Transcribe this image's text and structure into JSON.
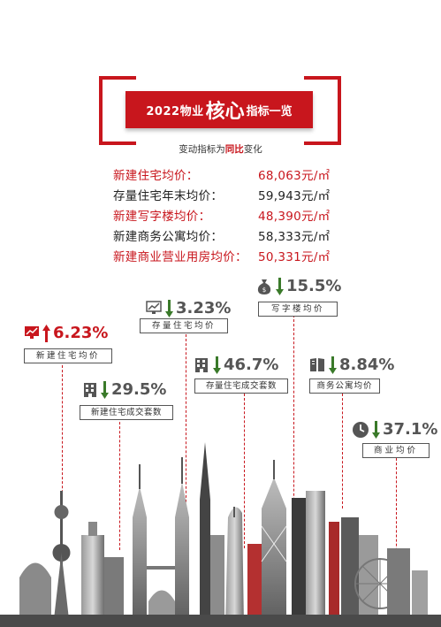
{
  "title": {
    "part1": "2022物业",
    "part2": "核心",
    "part3": "指标一览"
  },
  "subtitle": {
    "prefix": "变动指标为",
    "highlight": "同比",
    "suffix": "变化"
  },
  "prices": [
    {
      "label": "新建住宅均价：",
      "value": "68,063元/㎡",
      "color": "#c8161d"
    },
    {
      "label": "存量住宅年末均价：",
      "value": "59,943元/㎡",
      "color": "#222222"
    },
    {
      "label": "新建写字楼均价：",
      "value": "48,390元/㎡",
      "color": "#c8161d"
    },
    {
      "label": "新建商务公寓均价：",
      "value": "58,333元/㎡",
      "color": "#222222"
    },
    {
      "label": "新建商业营业用房均价：",
      "value": "50,331元/㎡",
      "color": "#c8161d"
    }
  ],
  "indicators": [
    {
      "key": "new-housing-price",
      "pct": "6.23%",
      "direction": "up",
      "label": "新建住宅均价",
      "icon": "chart-monitor-icon"
    },
    {
      "key": "new-housing-volume",
      "pct": "29.5%",
      "direction": "down",
      "label": "新建住宅成交套数",
      "icon": "building-icon"
    },
    {
      "key": "existing-housing-price",
      "pct": "3.23%",
      "direction": "down",
      "label": "存量住宅均价",
      "icon": "chart-monitor-icon"
    },
    {
      "key": "existing-housing-volume",
      "pct": "46.7%",
      "direction": "down",
      "label": "存量住宅成交套数",
      "icon": "building-icon"
    },
    {
      "key": "office-price",
      "pct": "15.5%",
      "direction": "down",
      "label": "写字楼均价",
      "icon": "money-bag-icon"
    },
    {
      "key": "apartment-price",
      "pct": "8.84%",
      "direction": "down",
      "label": "商务公寓均价",
      "icon": "book-icon"
    },
    {
      "key": "commercial-price",
      "pct": "37.1%",
      "direction": "down",
      "label": "商业均价",
      "icon": "clock-icon"
    }
  ],
  "colors": {
    "accent": "#c8161d",
    "down_arrow": "#3a7a2a",
    "up_arrow": "#c8161d",
    "text": "#222222",
    "percent": "#555555"
  }
}
